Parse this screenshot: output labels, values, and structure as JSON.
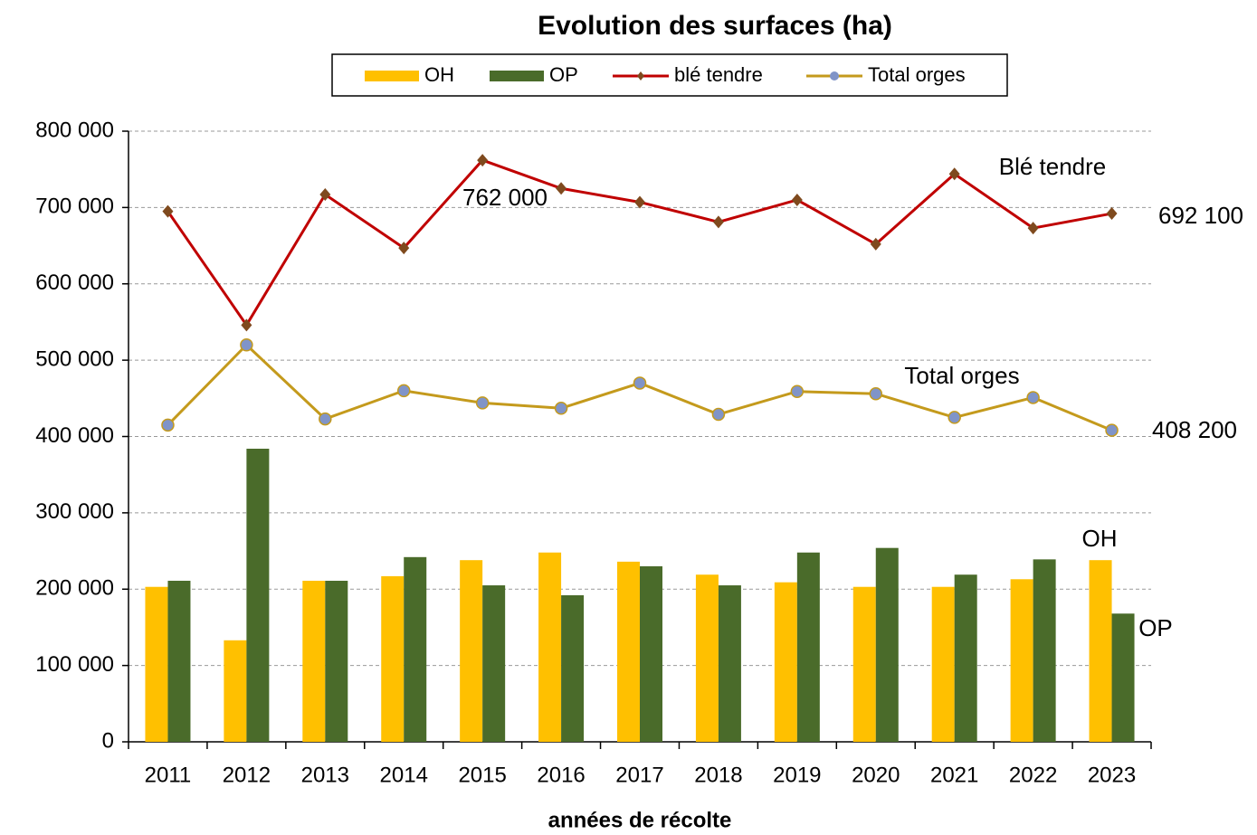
{
  "chart_data": {
    "type": "bar_line",
    "title": "Evolution des surfaces (ha)",
    "x_label": "années de récolte",
    "categories": [
      "2011",
      "2012",
      "2013",
      "2014",
      "2015",
      "2016",
      "2017",
      "2018",
      "2019",
      "2020",
      "2021",
      "2022",
      "2023"
    ],
    "series": [
      {
        "name": "OH",
        "type": "bar",
        "color": "#ffc000",
        "values": [
          203000,
          133000,
          211000,
          217000,
          238000,
          248000,
          236000,
          219000,
          209000,
          203000,
          203000,
          213000,
          238000
        ]
      },
      {
        "name": "OP",
        "type": "bar",
        "color": "#4a6b2a",
        "values": [
          211000,
          384000,
          211000,
          242000,
          205000,
          192000,
          230000,
          205000,
          248000,
          254000,
          219000,
          239000,
          168000
        ]
      },
      {
        "name": "blé tendre",
        "type": "line",
        "color": "#c00000",
        "marker": "diamond",
        "marker_color": "#7f4a1e",
        "label_color": "#e02020",
        "values": [
          695000,
          546000,
          717000,
          647000,
          762000,
          725000,
          707000,
          681000,
          710000,
          652000,
          744000,
          673000,
          692100
        ],
        "value_labels": [
          null,
          null,
          null,
          null,
          "762 000",
          null,
          null,
          null,
          null,
          null,
          null,
          null,
          "692 100"
        ]
      },
      {
        "name": "Total orges",
        "type": "line",
        "color": "#c49a1c",
        "marker": "circle",
        "marker_color": "#8094c8",
        "label_color": "#e07030",
        "values": [
          415000,
          520000,
          423000,
          460000,
          444000,
          437000,
          470000,
          429000,
          459000,
          456000,
          425000,
          451000,
          408200
        ],
        "value_labels": [
          null,
          null,
          null,
          null,
          null,
          null,
          null,
          null,
          null,
          null,
          null,
          null,
          "408 200"
        ]
      }
    ],
    "annotations": [
      {
        "text": "Blé tendre",
        "color": "#d42020"
      },
      {
        "text": "Total orges",
        "color": "#c9a227"
      },
      {
        "text": "OH",
        "color": "#c9a227"
      },
      {
        "text": "OP",
        "color": "#4a6b2a"
      }
    ],
    "ylim": [
      0,
      800000
    ],
    "yticks": [
      0,
      {
        "value": 100000,
        "label": "100 000"
      },
      {
        "value": 200000,
        "label": "200 000"
      },
      {
        "value": 300000,
        "label": "300 000"
      },
      {
        "value": 400000,
        "label": "400 000"
      },
      {
        "value": 500000,
        "label": "500 000"
      },
      {
        "value": 600000,
        "label": "600 000"
      },
      {
        "value": 700000,
        "label": "700 000"
      },
      {
        "value": 800000,
        "label": "800 000"
      }
    ],
    "grid": true,
    "legend": "top"
  }
}
